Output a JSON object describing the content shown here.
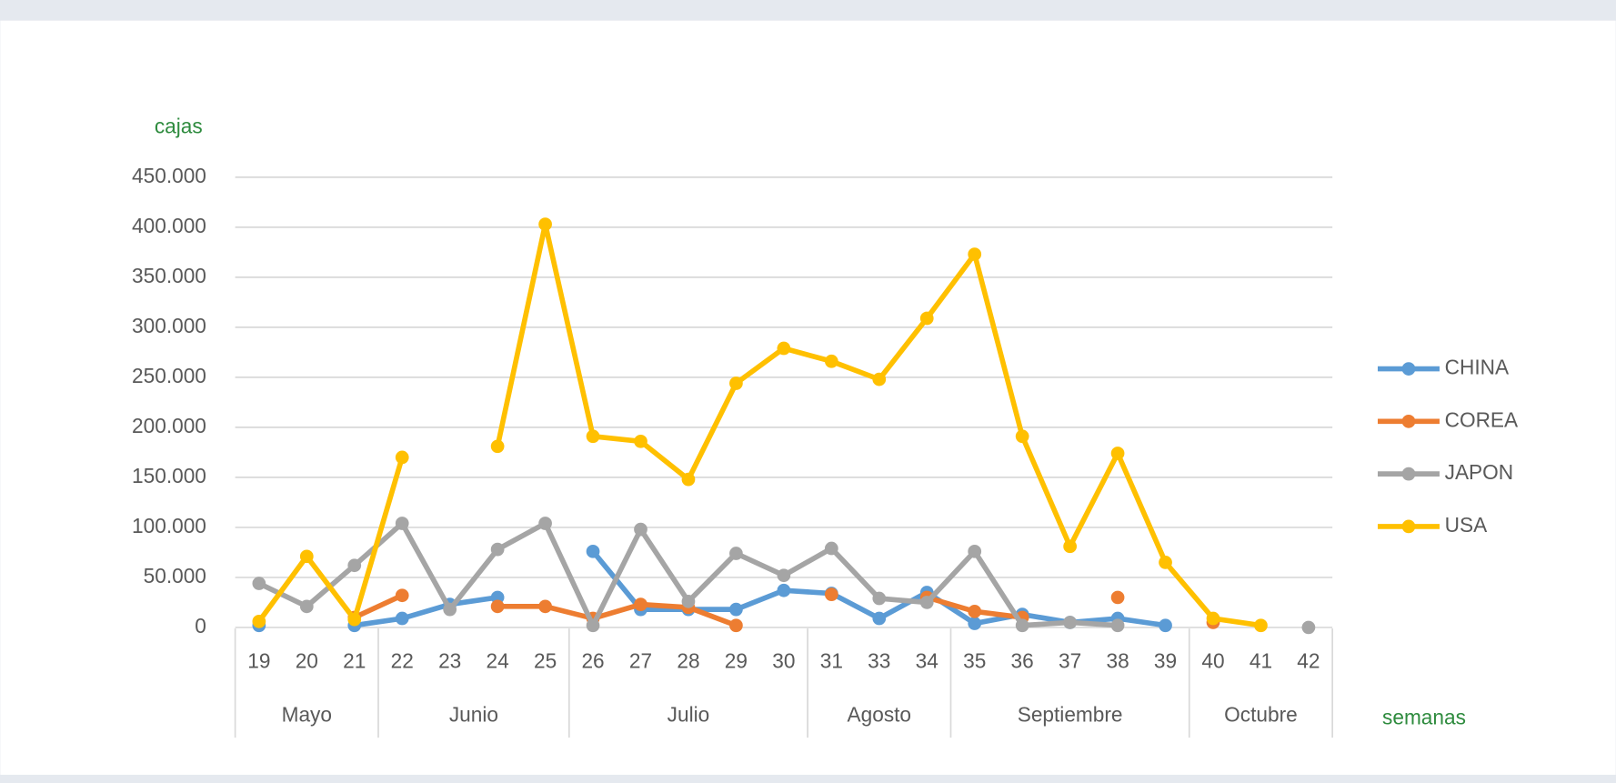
{
  "chart_data": {
    "type": "line",
    "y_label": "cajas",
    "x_label": "semanas",
    "categories": [
      "19",
      "20",
      "21",
      "22",
      "23",
      "24",
      "25",
      "26",
      "27",
      "28",
      "29",
      "30",
      "31",
      "33",
      "34",
      "35",
      "36",
      "37",
      "38",
      "39",
      "40",
      "41",
      "42"
    ],
    "groups": [
      {
        "label": "Mayo",
        "count": 3
      },
      {
        "label": "Junio",
        "count": 4
      },
      {
        "label": "Julio",
        "count": 5
      },
      {
        "label": "Agosto",
        "count": 3
      },
      {
        "label": "Septiembre",
        "count": 5
      },
      {
        "label": "Octubre",
        "count": 3
      }
    ],
    "ylim": [
      0,
      450000
    ],
    "yticks": [
      0,
      {
        "value": 50000,
        "label": "50.000"
      },
      {
        "value": 100000,
        "label": "100.000"
      },
      {
        "value": 150000,
        "label": "150.000"
      },
      {
        "value": 200000,
        "label": "200.000"
      },
      {
        "value": 250000,
        "label": "250.000"
      },
      {
        "value": 300000,
        "label": "300.000"
      },
      {
        "value": 350000,
        "label": "350.000"
      },
      {
        "value": 400000,
        "label": "400.000"
      },
      {
        "value": 450000,
        "label": "450.000"
      }
    ],
    "grid": true,
    "legend": "right",
    "series": [
      {
        "name": "CHINA",
        "color": "#5b9bd5",
        "values": [
          2000,
          null,
          2000,
          9000,
          23000,
          30000,
          null,
          76000,
          18000,
          18000,
          18000,
          37000,
          34000,
          9000,
          35000,
          4000,
          13000,
          5000,
          9000,
          2000,
          null,
          null,
          null
        ]
      },
      {
        "name": "COREA",
        "color": "#ed7d31",
        "values": [
          null,
          null,
          10000,
          32000,
          null,
          21000,
          21000,
          9000,
          23000,
          20000,
          2000,
          null,
          33000,
          null,
          30000,
          16000,
          10000,
          null,
          30000,
          null,
          5000,
          null,
          null
        ]
      },
      {
        "name": "JAPON",
        "color": "#a5a5a5",
        "values": [
          44000,
          21000,
          62000,
          104000,
          18000,
          78000,
          104000,
          2000,
          98000,
          26000,
          74000,
          52000,
          79000,
          29000,
          25000,
          76000,
          2000,
          5000,
          2000,
          null,
          null,
          null,
          0
        ]
      },
      {
        "name": "USA",
        "color": "#ffc000",
        "values": [
          6000,
          71000,
          8000,
          170000,
          null,
          181000,
          403000,
          191000,
          186000,
          148000,
          244000,
          279000,
          266000,
          248000,
          309000,
          373000,
          191000,
          81000,
          174000,
          65000,
          9000,
          2000,
          null
        ]
      }
    ]
  }
}
